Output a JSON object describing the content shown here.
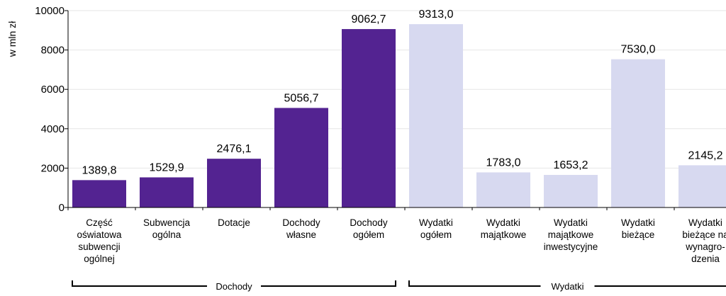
{
  "chart_data": {
    "type": "bar",
    "ylabel": "w mln zł",
    "ylim": [
      0,
      10000
    ],
    "yticks": [
      "0",
      "2000",
      "4000",
      "6000",
      "8000",
      "10000"
    ],
    "grid": true,
    "bars": [
      {
        "label": [
          "Część",
          "oświatowa",
          "subwencji",
          "ogólnej"
        ],
        "value": 1389.8,
        "display": "1389,8",
        "group": "Dochody"
      },
      {
        "label": [
          "Subwencja",
          "ogólna"
        ],
        "value": 1529.9,
        "display": "1529,9",
        "group": "Dochody"
      },
      {
        "label": [
          "Dotacje"
        ],
        "value": 2476.1,
        "display": "2476,1",
        "group": "Dochody"
      },
      {
        "label": [
          "Dochody",
          "własne"
        ],
        "value": 5056.7,
        "display": "5056,7",
        "group": "Dochody"
      },
      {
        "label": [
          "Dochody",
          "ogółem"
        ],
        "value": 9062.7,
        "display": "9062,7",
        "group": "Dochody"
      },
      {
        "label": [
          "Wydatki",
          "ogółem"
        ],
        "value": 9313.0,
        "display": "9313,0",
        "group": "Wydatki"
      },
      {
        "label": [
          "Wydatki",
          "majątkowe"
        ],
        "value": 1783.0,
        "display": "1783,0",
        "group": "Wydatki"
      },
      {
        "label": [
          "Wydatki",
          "majątkowe",
          "inwestycyjne"
        ],
        "value": 1653.2,
        "display": "1653,2",
        "group": "Wydatki"
      },
      {
        "label": [
          "Wydatki",
          "bieżące"
        ],
        "value": 7530.0,
        "display": "7530,0",
        "group": "Wydatki"
      },
      {
        "label": [
          "Wydatki",
          "bieżące na",
          "wynagro-",
          "dzenia"
        ],
        "value": 2145.2,
        "display": "2145,2",
        "group": "Wydatki"
      }
    ],
    "groups": [
      {
        "name": "Dochody",
        "color": "#532391"
      },
      {
        "name": "Wydatki",
        "color": "#d7d9f0"
      }
    ]
  }
}
